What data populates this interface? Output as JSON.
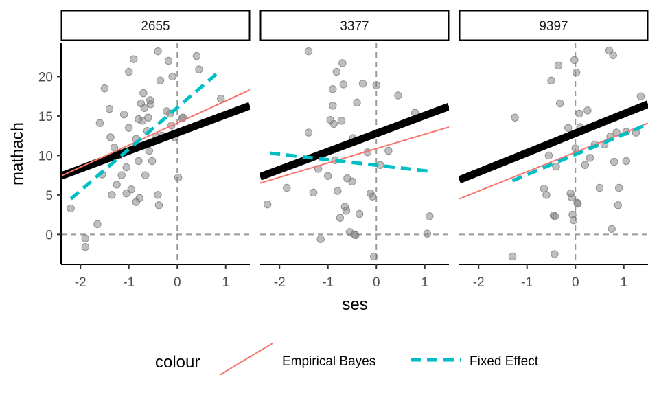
{
  "chart_data": {
    "type": "scatter",
    "xlabel": "ses",
    "ylabel": "mathach",
    "xlim": [
      -2.4,
      1.5
    ],
    "ylim": [
      -3.8,
      24.3
    ],
    "xticks": [
      -2,
      -1,
      0,
      1
    ],
    "yticks": [
      0,
      5,
      10,
      15,
      20
    ],
    "xtick_labels": [
      "-2",
      "-1",
      "0",
      "1"
    ],
    "ytick_labels": [
      "0",
      "5",
      "10",
      "15",
      "20"
    ],
    "reference_lines": {
      "x": 0,
      "y": 0
    },
    "colors": {
      "points": "#808080",
      "overall": "#000000",
      "empirical_bayes": "#F8766D",
      "fixed_effect": "#00BFC4",
      "reference": "#999999"
    },
    "legend": {
      "title": "colour",
      "position": "bottom",
      "entries": [
        {
          "label": "Empirical Bayes",
          "color": "#F8766D",
          "style": "solid"
        },
        {
          "label": "Fixed Effect",
          "color": "#00BFC4",
          "style": "dashed"
        }
      ]
    },
    "panels": [
      {
        "label": "2655",
        "overall_line": {
          "x": [
            -2.4,
            1.5
          ],
          "y": [
            7.4,
            16.3
          ]
        },
        "empirical_bayes_line": {
          "x": [
            -2.4,
            1.5
          ],
          "y": [
            7.4,
            18.3
          ]
        },
        "fixed_effect_line": {
          "x": [
            -2.2,
            0.9
          ],
          "y": [
            4.5,
            20.8
          ]
        },
        "points": [
          [
            -2.2,
            3.3
          ],
          [
            -1.9,
            -0.5
          ],
          [
            -1.9,
            -1.6
          ],
          [
            -1.65,
            1.3
          ],
          [
            -1.6,
            14.1
          ],
          [
            -1.55,
            7.6
          ],
          [
            -1.5,
            18.5
          ],
          [
            -1.4,
            15.9
          ],
          [
            -1.38,
            12.3
          ],
          [
            -1.35,
            5.0
          ],
          [
            -1.3,
            11.0
          ],
          [
            -1.25,
            6.3
          ],
          [
            -1.2,
            10.0
          ],
          [
            -1.15,
            7.5
          ],
          [
            -1.1,
            15.2
          ],
          [
            -1.05,
            8.5
          ],
          [
            -1.05,
            5.2
          ],
          [
            -1.0,
            20.6
          ],
          [
            -1.0,
            13.5
          ],
          [
            -0.95,
            5.7
          ],
          [
            -0.9,
            22.2
          ],
          [
            -0.85,
            12.1
          ],
          [
            -0.85,
            4.1
          ],
          [
            -0.8,
            14.6
          ],
          [
            -0.8,
            9.3
          ],
          [
            -0.78,
            4.6
          ],
          [
            -0.75,
            16.6
          ],
          [
            -0.72,
            14.4
          ],
          [
            -0.7,
            17.9
          ],
          [
            -0.68,
            16.0
          ],
          [
            -0.66,
            7.5
          ],
          [
            -0.62,
            13.1
          ],
          [
            -0.6,
            14.8
          ],
          [
            -0.58,
            10.6
          ],
          [
            -0.56,
            17.0
          ],
          [
            -0.55,
            16.5
          ],
          [
            -0.52,
            9.3
          ],
          [
            -0.45,
            12.4
          ],
          [
            -0.4,
            23.2
          ],
          [
            -0.4,
            5.0
          ],
          [
            -0.38,
            3.7
          ],
          [
            -0.35,
            19.5
          ],
          [
            -0.32,
            12.5
          ],
          [
            -0.22,
            15.6
          ],
          [
            -0.18,
            22.0
          ],
          [
            -0.15,
            15.3
          ],
          [
            -0.12,
            13.8
          ],
          [
            -0.1,
            20.0
          ],
          [
            -0.05,
            12.3
          ],
          [
            0.02,
            7.2
          ],
          [
            0.1,
            14.7
          ],
          [
            0.12,
            14.8
          ],
          [
            0.4,
            22.6
          ],
          [
            0.45,
            20.9
          ],
          [
            0.9,
            17.2
          ]
        ]
      },
      {
        "label": "3377",
        "overall_line": {
          "x": [
            -2.4,
            1.5
          ],
          "y": [
            7.3,
            16.2
          ]
        },
        "empirical_bayes_line": {
          "x": [
            -2.4,
            1.5
          ],
          "y": [
            6.5,
            13.6
          ]
        },
        "fixed_effect_line": {
          "x": [
            -2.2,
            1.1
          ],
          "y": [
            10.3,
            8.0
          ]
        },
        "points": [
          [
            -2.25,
            3.8
          ],
          [
            -1.85,
            5.9
          ],
          [
            -1.4,
            23.2
          ],
          [
            -1.4,
            12.9
          ],
          [
            -1.3,
            5.3
          ],
          [
            -1.2,
            8.3
          ],
          [
            -1.15,
            -0.6
          ],
          [
            -1.0,
            7.4
          ],
          [
            -0.95,
            14.5
          ],
          [
            -0.9,
            18.4
          ],
          [
            -0.9,
            16.3
          ],
          [
            -0.88,
            14.0
          ],
          [
            -0.85,
            9.4
          ],
          [
            -0.82,
            20.6
          ],
          [
            -0.8,
            5.5
          ],
          [
            -0.75,
            2.1
          ],
          [
            -0.72,
            14.4
          ],
          [
            -0.7,
            21.7
          ],
          [
            -0.68,
            19.0
          ],
          [
            -0.65,
            3.5
          ],
          [
            -0.62,
            3.0
          ],
          [
            -0.6,
            7.1
          ],
          [
            -0.55,
            0.3
          ],
          [
            -0.5,
            6.7
          ],
          [
            -0.48,
            12.2
          ],
          [
            -0.45,
            0.0
          ],
          [
            -0.43,
            -0.1
          ],
          [
            -0.4,
            16.7
          ],
          [
            -0.35,
            2.6
          ],
          [
            -0.28,
            19.1
          ],
          [
            -0.18,
            10.4
          ],
          [
            -0.12,
            5.2
          ],
          [
            -0.08,
            4.8
          ],
          [
            -0.05,
            -2.8
          ],
          [
            0.0,
            18.9
          ],
          [
            0.08,
            8.8
          ],
          [
            0.25,
            10.6
          ],
          [
            0.45,
            17.6
          ],
          [
            0.8,
            15.4
          ],
          [
            1.05,
            0.1
          ],
          [
            1.1,
            2.3
          ]
        ]
      },
      {
        "label": "9397",
        "overall_line": {
          "x": [
            -2.4,
            1.5
          ],
          "y": [
            6.9,
            16.5
          ]
        },
        "empirical_bayes_line": {
          "x": [
            -2.4,
            1.5
          ],
          "y": [
            4.5,
            14.1
          ]
        },
        "fixed_effect_line": {
          "x": [
            -1.3,
            1.4
          ],
          "y": [
            6.8,
            13.7
          ]
        },
        "points": [
          [
            -1.3,
            -2.8
          ],
          [
            -1.25,
            14.8
          ],
          [
            -0.65,
            5.8
          ],
          [
            -0.6,
            5.0
          ],
          [
            -0.55,
            10.0
          ],
          [
            -0.52,
            11.5
          ],
          [
            -0.5,
            19.5
          ],
          [
            -0.45,
            2.4
          ],
          [
            -0.43,
            -2.5
          ],
          [
            -0.42,
            2.3
          ],
          [
            -0.4,
            8.6
          ],
          [
            -0.35,
            21.4
          ],
          [
            -0.32,
            16.6
          ],
          [
            -0.15,
            13.5
          ],
          [
            -0.1,
            5.2
          ],
          [
            -0.08,
            4.7
          ],
          [
            -0.06,
            2.5
          ],
          [
            -0.04,
            1.8
          ],
          [
            -0.02,
            22.1
          ],
          [
            0.0,
            10.9
          ],
          [
            0.02,
            20.5
          ],
          [
            0.04,
            4.0
          ],
          [
            0.05,
            3.9
          ],
          [
            0.08,
            15.3
          ],
          [
            0.1,
            13.6
          ],
          [
            0.2,
            8.8
          ],
          [
            0.25,
            15.7
          ],
          [
            0.3,
            9.7
          ],
          [
            0.4,
            11.4
          ],
          [
            0.5,
            5.9
          ],
          [
            0.6,
            11.4
          ],
          [
            0.7,
            23.3
          ],
          [
            0.72,
            12.4
          ],
          [
            0.75,
            0.7
          ],
          [
            0.78,
            22.7
          ],
          [
            0.8,
            9.2
          ],
          [
            0.85,
            12.9
          ],
          [
            0.88,
            3.7
          ],
          [
            0.9,
            5.9
          ],
          [
            1.05,
            9.3
          ],
          [
            1.05,
            13.0
          ],
          [
            1.25,
            12.9
          ],
          [
            1.35,
            17.5
          ]
        ]
      }
    ]
  }
}
